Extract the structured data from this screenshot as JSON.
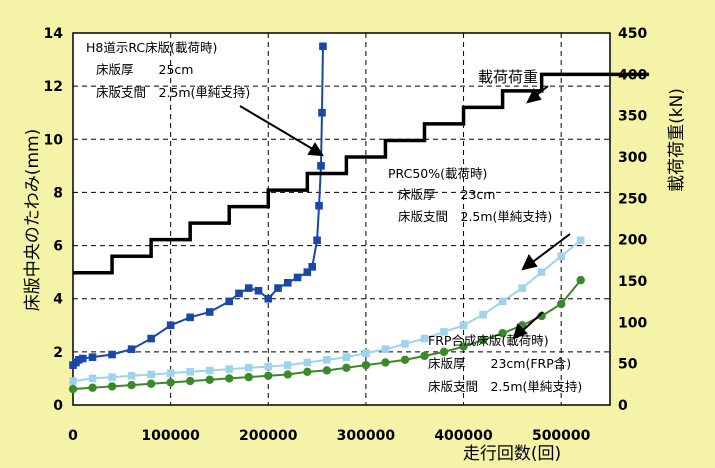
{
  "chart_data": {
    "type": "line",
    "xlabel": "走行回数(回)",
    "ylabel": "床版中央のたわみ(mm)",
    "y2label": "載荷荷重(kN)",
    "xlim": [
      0,
      550000
    ],
    "ylim": [
      0,
      14
    ],
    "y2lim": [
      0,
      450
    ],
    "xticks": [
      "0",
      "100000",
      "200000",
      "300000",
      "400000",
      "500000"
    ],
    "yticks": [
      "0",
      "2",
      "4",
      "6",
      "8",
      "10",
      "12",
      "14"
    ],
    "y2ticks": [
      "0",
      "50",
      "100",
      "150",
      "200",
      "250",
      "300",
      "350",
      "400",
      "450"
    ],
    "grid": true,
    "series": [
      {
        "name": "H8道示RC床版(載荷時)",
        "axis": "left",
        "color": "#1a47a8",
        "marker": "square",
        "x": [
          0,
          3000,
          6000,
          10000,
          20000,
          40000,
          60000,
          80000,
          100000,
          120000,
          140000,
          160000,
          170000,
          180000,
          190000,
          200000,
          210000,
          220000,
          230000,
          240000,
          245000,
          250000,
          252000,
          254000,
          255000,
          256000
        ],
        "y": [
          1.5,
          1.6,
          1.7,
          1.75,
          1.8,
          1.9,
          2.1,
          2.5,
          3.0,
          3.3,
          3.5,
          3.9,
          4.2,
          4.4,
          4.3,
          4.0,
          4.4,
          4.6,
          4.8,
          5.0,
          5.2,
          6.2,
          7.5,
          9.0,
          11.0,
          13.5
        ]
      },
      {
        "name": "PRC50%(載荷時)",
        "axis": "left",
        "color": "#9fd3ec",
        "marker": "square",
        "x": [
          0,
          20000,
          40000,
          60000,
          80000,
          100000,
          120000,
          140000,
          160000,
          180000,
          200000,
          220000,
          240000,
          260000,
          280000,
          300000,
          320000,
          340000,
          360000,
          380000,
          400000,
          420000,
          440000,
          460000,
          480000,
          500000,
          520000
        ],
        "y": [
          0.9,
          1.0,
          1.05,
          1.1,
          1.15,
          1.2,
          1.25,
          1.3,
          1.35,
          1.4,
          1.45,
          1.5,
          1.6,
          1.7,
          1.8,
          1.95,
          2.1,
          2.3,
          2.5,
          2.75,
          3.0,
          3.4,
          3.9,
          4.4,
          5.0,
          5.6,
          6.2
        ]
      },
      {
        "name": "FRP合成床版(載荷時)",
        "axis": "left",
        "color": "#3b8a2a",
        "marker": "circle",
        "x": [
          0,
          20000,
          40000,
          60000,
          80000,
          100000,
          120000,
          140000,
          160000,
          180000,
          200000,
          220000,
          240000,
          260000,
          280000,
          300000,
          320000,
          340000,
          360000,
          380000,
          400000,
          420000,
          440000,
          460000,
          480000,
          500000,
          520000
        ],
        "y": [
          0.6,
          0.65,
          0.7,
          0.75,
          0.8,
          0.85,
          0.9,
          0.95,
          1.0,
          1.05,
          1.1,
          1.15,
          1.25,
          1.3,
          1.4,
          1.5,
          1.6,
          1.7,
          1.85,
          2.0,
          2.2,
          2.45,
          2.7,
          3.0,
          3.35,
          3.8,
          4.7
        ]
      },
      {
        "name": "載荷荷重",
        "axis": "right",
        "color": "#000000",
        "step": true,
        "x": [
          0,
          40000,
          80000,
          120000,
          160000,
          200000,
          240000,
          280000,
          320000,
          360000,
          400000,
          440000,
          480000,
          520000
        ],
        "y": [
          160,
          180,
          200,
          220,
          240,
          260,
          280,
          300,
          320,
          340,
          360,
          380,
          400,
          400
        ]
      }
    ],
    "annotations": {
      "rc": [
        "H8道示RC床版(載荷時)",
        "床版厚　　25cm",
        "床版支間　2.5m(単純支持)"
      ],
      "prc": [
        "PRC50%(載荷時)",
        "床版厚　　23cm",
        "床版支間　2.5m(単純支持)"
      ],
      "frp": [
        "FRP合成床版(載荷時)",
        "床版厚　　23cm(FRP含)",
        "床版支間　2.5m(単純支持)"
      ],
      "load": "載荷荷重"
    }
  }
}
